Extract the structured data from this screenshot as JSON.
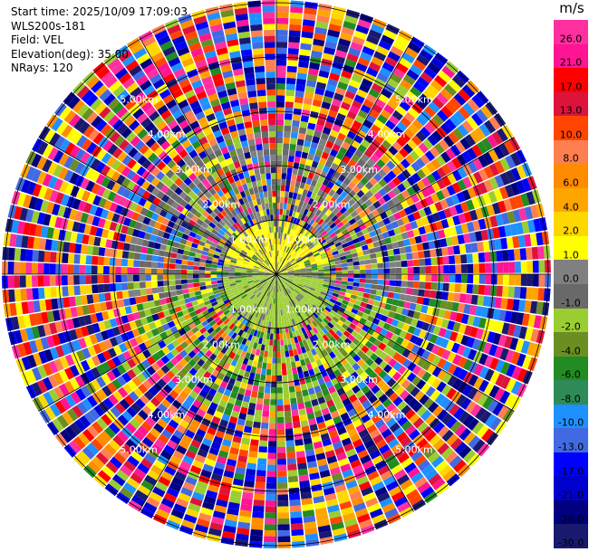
{
  "header": {
    "start_time": "Start time: 2025/10/09 17:09:03",
    "station": "WLS200s-181",
    "field": "Field: VEL",
    "elevation": "Elevation(deg): 35.00",
    "nrays": "NRays: 120"
  },
  "colorbar": {
    "unit": "m/s",
    "levels": [
      {
        "label": "26.0",
        "color": "#ff2fa0"
      },
      {
        "label": "21.0",
        "color": "#ff1493"
      },
      {
        "label": "17.0",
        "color": "#ff0000"
      },
      {
        "label": "13.0",
        "color": "#dc143c"
      },
      {
        "label": "10.0",
        "color": "#ff4500"
      },
      {
        "label": "8.0",
        "color": "#ff7f50"
      },
      {
        "label": "6.0",
        "color": "#ff8c00"
      },
      {
        "label": "4.0",
        "color": "#ffa500"
      },
      {
        "label": "2.0",
        "color": "#ffd700"
      },
      {
        "label": "1.0",
        "color": "#ffff00"
      },
      {
        "label": "0.0",
        "color": "#808080"
      },
      {
        "label": "-1.0",
        "color": "#696969"
      },
      {
        "label": "-2.0",
        "color": "#9acd32"
      },
      {
        "label": "-4.0",
        "color": "#6b8e23"
      },
      {
        "label": "-6.0",
        "color": "#228b22"
      },
      {
        "label": "-8.0",
        "color": "#2e8b57"
      },
      {
        "label": "-10.0",
        "color": "#1e90ff"
      },
      {
        "label": "-13.0",
        "color": "#4169e1"
      },
      {
        "label": "-17.0",
        "color": "#0000ff"
      },
      {
        "label": "-21.0",
        "color": "#0000cd"
      },
      {
        "label": "-26.0",
        "color": "#000080"
      },
      {
        "label": "-30.0",
        "color": "#191970"
      }
    ]
  },
  "range_ring_labels": [
    "1.00km",
    "2.00km",
    "3.00km",
    "4.00km",
    "5.00km"
  ]
}
